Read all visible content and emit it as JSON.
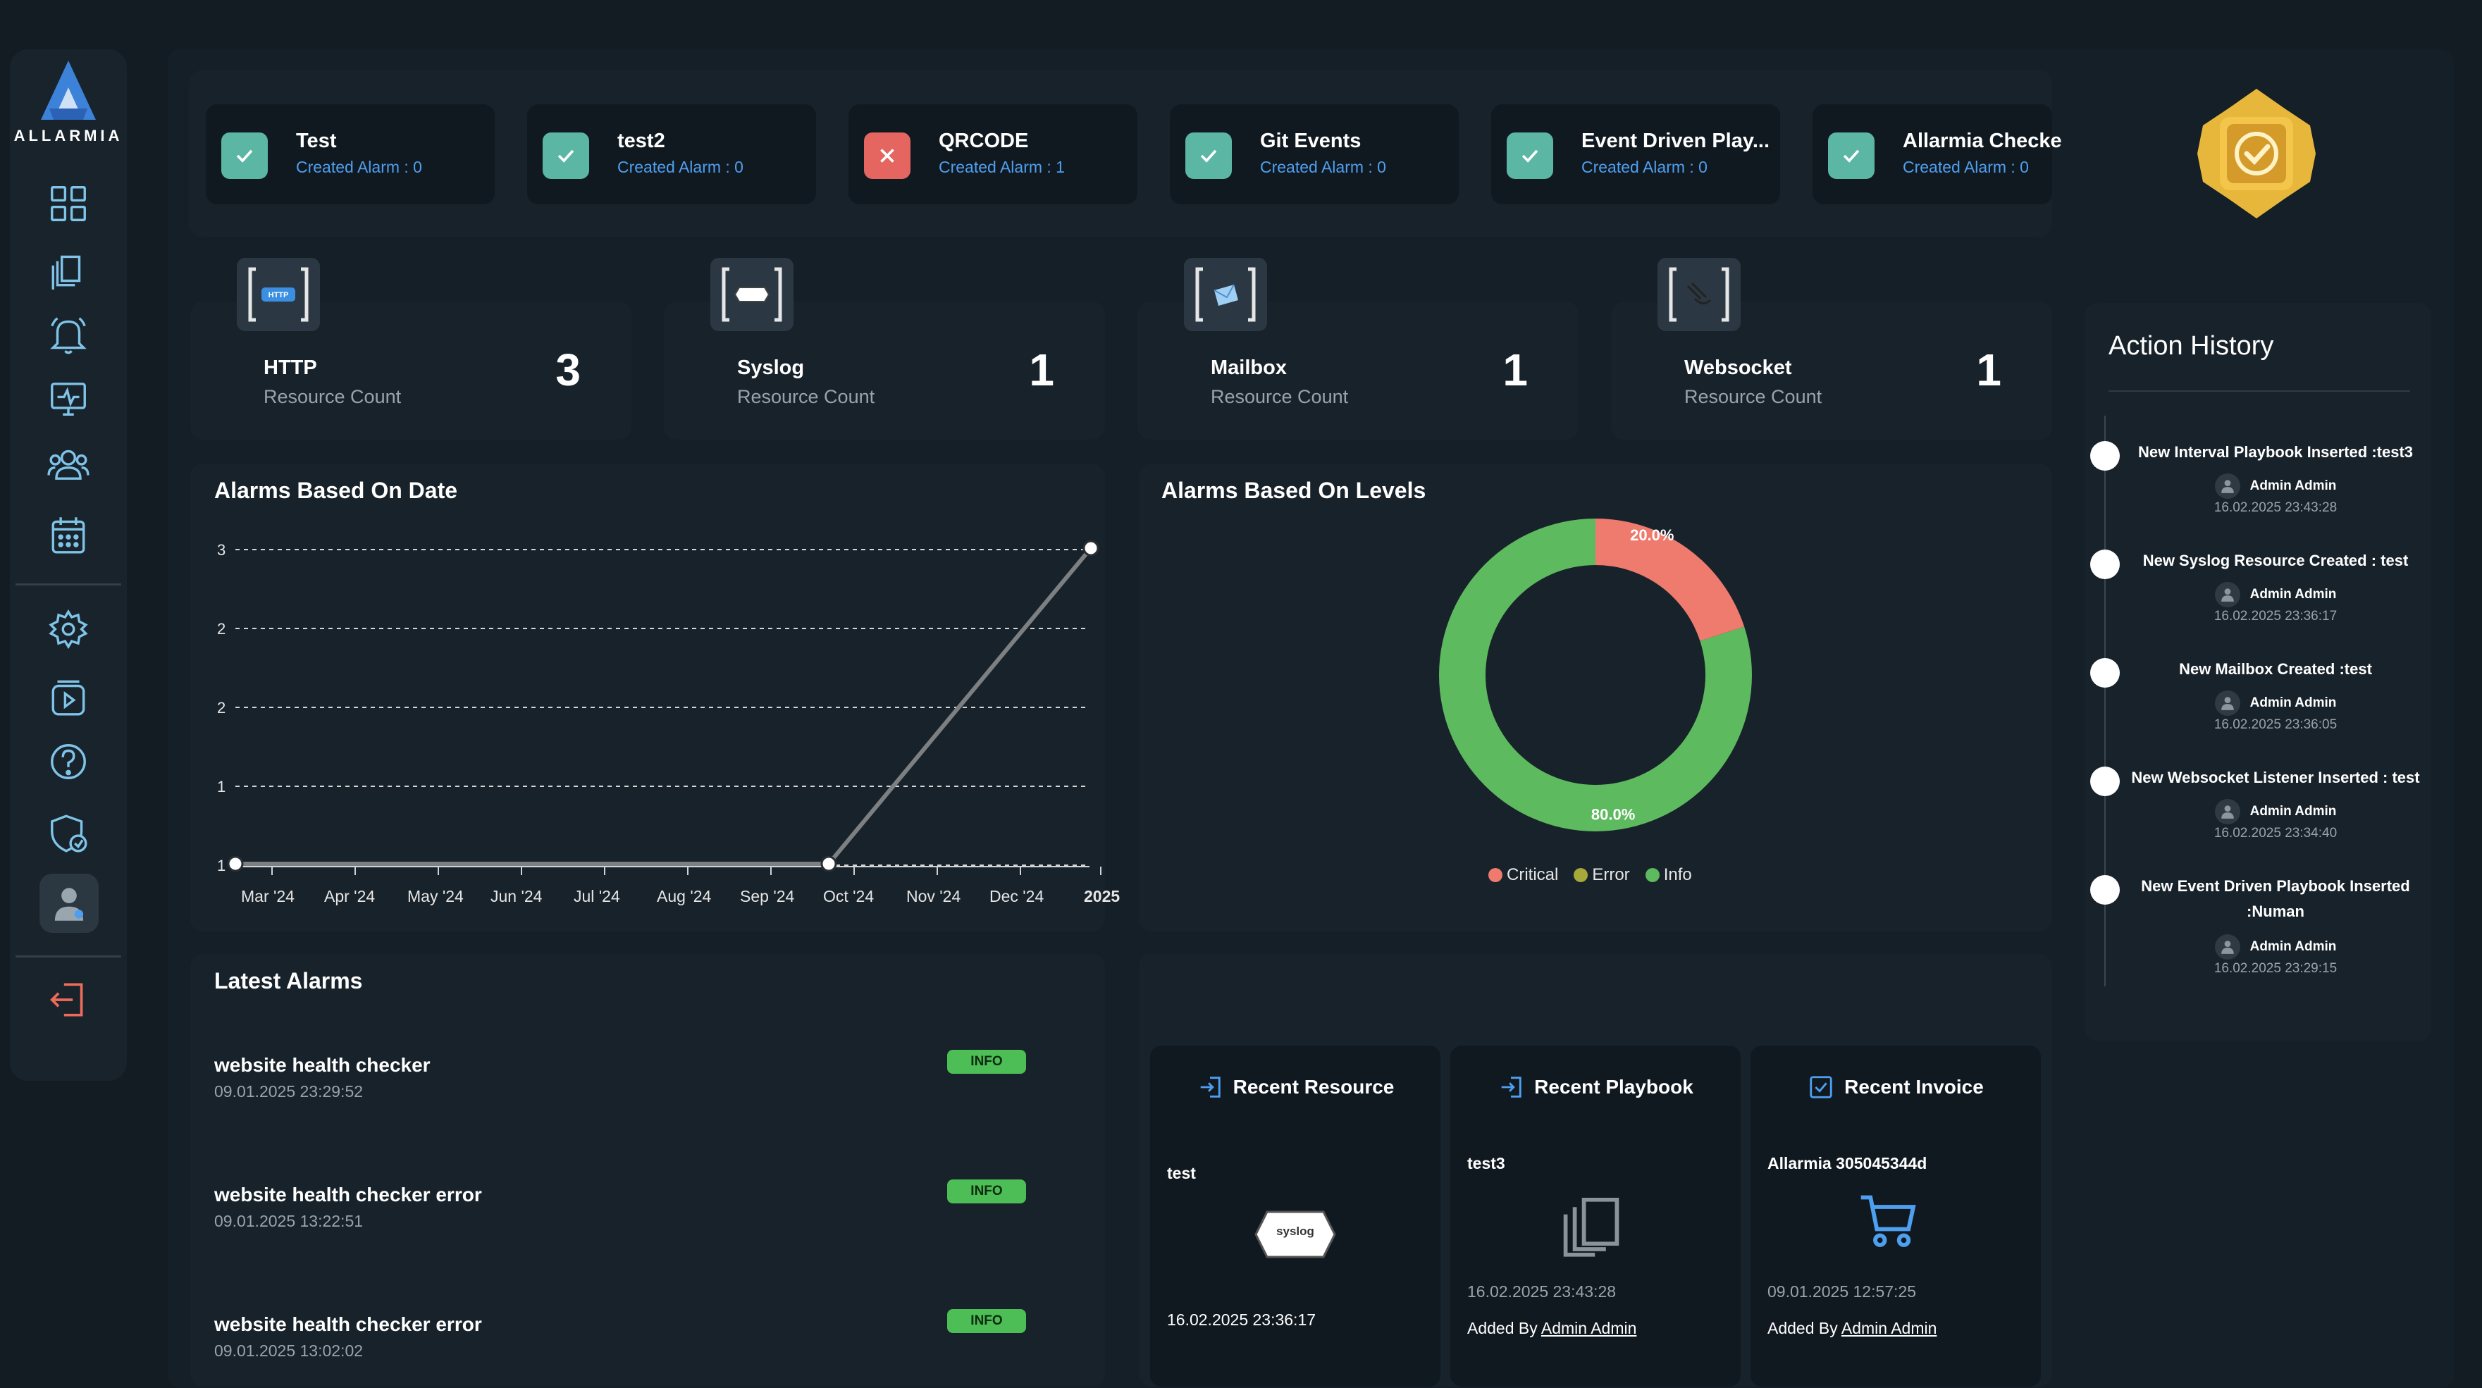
{
  "brand": {
    "name": "ALLARMIA"
  },
  "sidebar": {
    "items": [
      {
        "icon": "grid-icon"
      },
      {
        "icon": "layers-icon"
      },
      {
        "icon": "bell-icon"
      },
      {
        "icon": "monitor-icon"
      },
      {
        "icon": "users-icon"
      },
      {
        "icon": "calendar-icon"
      },
      {
        "icon": "gear-icon"
      },
      {
        "icon": "play-icon"
      },
      {
        "icon": "help-icon"
      },
      {
        "icon": "shield-icon"
      },
      {
        "icon": "profile-icon"
      },
      {
        "icon": "logout-icon"
      }
    ]
  },
  "projects": [
    {
      "name": "Test",
      "sub": "Created Alarm : 0",
      "status": "ok"
    },
    {
      "name": "test2",
      "sub": "Created Alarm : 0",
      "status": "ok"
    },
    {
      "name": "QRCODE",
      "sub": "Created Alarm : 1",
      "status": "error"
    },
    {
      "name": "Git Events",
      "sub": "Created Alarm : 0",
      "status": "ok"
    },
    {
      "name": "Event Driven Play...",
      "sub": "Created Alarm : 0",
      "status": "ok"
    },
    {
      "name": "Allarmia Checke",
      "sub": "Created Alarm : 0",
      "status": "ok"
    }
  ],
  "resources": [
    {
      "title": "HTTP",
      "sub": "Resource Count",
      "count": "3",
      "icon_text": "HTTP"
    },
    {
      "title": "Syslog",
      "sub": "Resource Count",
      "count": "1",
      "icon_text": ""
    },
    {
      "title": "Mailbox",
      "sub": "Resource Count",
      "count": "1",
      "icon_text": ""
    },
    {
      "title": "Websocket",
      "sub": "Resource Count",
      "count": "1",
      "icon_text": ""
    }
  ],
  "alarms_by_date": {
    "title": "Alarms Based On Date",
    "chart_data": {
      "type": "line",
      "categories": [
        "Mar '24",
        "Apr '24",
        "May '24",
        "Jun '24",
        "Jul '24",
        "Aug '24",
        "Sep '24",
        "Oct '24",
        "Nov '24",
        "Dec '24",
        "2025"
      ],
      "points": [
        {
          "x": "Mar '24",
          "y": 1
        },
        {
          "x": "Oct '24",
          "y": 1
        },
        {
          "x": "2025",
          "y": 3
        }
      ],
      "y_tick_labels": [
        "3",
        "2",
        "2",
        "1",
        "1"
      ],
      "ylim": [
        1,
        3
      ],
      "grid": true
    }
  },
  "alarms_by_level": {
    "title": "Alarms Based On Levels",
    "chart_data": {
      "type": "pie",
      "labels": [
        "Critical",
        "Error",
        "Info"
      ],
      "values": [
        20.0,
        0.0,
        80.0
      ],
      "value_labels": [
        "20.0%",
        "",
        "80.0%"
      ],
      "colors": [
        "#ee7b6d",
        "#a6a83c",
        "#5dba5f"
      ],
      "legend": "bottom"
    }
  },
  "latest_alarms": {
    "title": "Latest Alarms",
    "items": [
      {
        "title": "website health checker",
        "date": "09.01.2025 23:29:52",
        "level": "INFO"
      },
      {
        "title": "website health checker error",
        "date": "09.01.2025 13:22:51",
        "level": "INFO"
      },
      {
        "title": "website health checker error",
        "date": "09.01.2025 13:02:02",
        "level": "INFO"
      }
    ]
  },
  "recent": {
    "resource": {
      "heading": "Recent Resource",
      "name": "test",
      "tag": "syslog",
      "date": "16.02.2025 23:36:17"
    },
    "playbook": {
      "heading": "Recent Playbook",
      "name": "test3",
      "date": "16.02.2025 23:43:28",
      "added_prefix": "Added By",
      "added_by": "Admin Admin"
    },
    "invoice": {
      "heading": "Recent Invoice",
      "name": "Allarmia 305045344d",
      "date": "09.01.2025 12:57:25",
      "added_prefix": "Added By",
      "added_by": "Admin Admin"
    }
  },
  "history": {
    "title": "Action History",
    "items": [
      {
        "title": "New Interval Playbook Inserted :test3",
        "user": "Admin Admin",
        "date": "16.02.2025 23:43:28"
      },
      {
        "title": "New Syslog Resource Created : test",
        "user": "Admin Admin",
        "date": "16.02.2025 23:36:17"
      },
      {
        "title": "New Mailbox Created :test",
        "user": "Admin Admin",
        "date": "16.02.2025 23:36:05"
      },
      {
        "title": "New Websocket Listener Inserted : test",
        "user": "Admin Admin",
        "date": "16.02.2025 23:34:40"
      },
      {
        "title": "New Event Driven Playbook Inserted :Numan",
        "user": "Admin Admin",
        "date": "16.02.2025 23:29:15"
      }
    ]
  },
  "colors": {
    "ok": "#5cb6a4",
    "error": "#e56560",
    "accent": "#4f9ff0",
    "badge": "#4cbe55"
  }
}
